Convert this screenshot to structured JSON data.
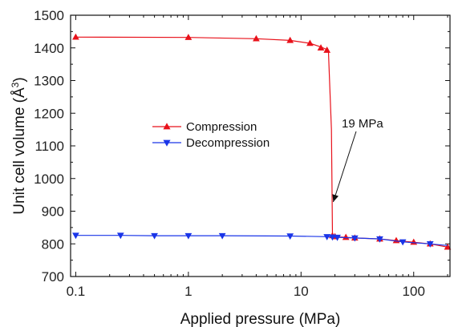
{
  "chart_data": {
    "type": "line",
    "xlabel": "Applied pressure (MPa)",
    "ylabel": "Unit cell volume (Å³)",
    "ylabel_parts": {
      "main": "Unit cell volume (Å",
      "sup": "3",
      "close": ")"
    },
    "xscale": "log",
    "xlim": [
      0.09,
      210
    ],
    "ylim": [
      700,
      1500
    ],
    "xticks": [
      0.1,
      1,
      10,
      100
    ],
    "xtick_labels": [
      "0.1",
      "1",
      "10",
      "100"
    ],
    "yticks": [
      700,
      800,
      900,
      1000,
      1100,
      1200,
      1300,
      1400,
      1500
    ],
    "ytick_labels": [
      "700",
      "800",
      "900",
      "1000",
      "1100",
      "1200",
      "1300",
      "1400",
      "1500"
    ],
    "grid": false,
    "legend_position": "center-left",
    "series": [
      {
        "name": "Compression",
        "color": "#e8111a",
        "marker": "triangle-up",
        "points": [
          [
            0.1,
            1433
          ],
          [
            1,
            1432
          ],
          [
            4,
            1428
          ],
          [
            8,
            1423
          ],
          [
            12,
            1414
          ],
          [
            15,
            1400
          ],
          [
            17,
            1393
          ],
          [
            19,
            825
          ],
          [
            20,
            822
          ],
          [
            25,
            820
          ],
          [
            30,
            818
          ],
          [
            50,
            815
          ],
          [
            70,
            810
          ],
          [
            100,
            805
          ],
          [
            140,
            800
          ],
          [
            200,
            790
          ]
        ],
        "curve": [
          [
            0.1,
            1433
          ],
          [
            1,
            1432
          ],
          [
            4,
            1428
          ],
          [
            8,
            1423
          ],
          [
            12,
            1414
          ],
          [
            15,
            1403
          ],
          [
            17.5,
            1393
          ],
          [
            18.6,
            1150
          ],
          [
            19,
            825
          ],
          [
            20,
            822
          ],
          [
            25,
            820
          ],
          [
            30,
            818
          ],
          [
            50,
            815
          ],
          [
            70,
            810
          ],
          [
            100,
            805
          ],
          [
            140,
            800
          ],
          [
            200,
            790
          ]
        ]
      },
      {
        "name": "Decompression",
        "color": "#1a35e8",
        "marker": "triangle-down",
        "points": [
          [
            0.1,
            826
          ],
          [
            0.25,
            826
          ],
          [
            0.5,
            825
          ],
          [
            1,
            825
          ],
          [
            2,
            825
          ],
          [
            8,
            824
          ],
          [
            17,
            822
          ],
          [
            19,
            821
          ],
          [
            21,
            820
          ],
          [
            30,
            818
          ],
          [
            50,
            815
          ],
          [
            80,
            806
          ],
          [
            140,
            800
          ]
        ],
        "curve": [
          [
            0.1,
            826
          ],
          [
            0.25,
            826
          ],
          [
            0.5,
            825
          ],
          [
            1,
            825
          ],
          [
            2,
            825
          ],
          [
            8,
            824
          ],
          [
            17,
            822
          ],
          [
            19,
            821
          ],
          [
            21,
            820
          ],
          [
            30,
            818
          ],
          [
            50,
            815
          ],
          [
            80,
            806
          ],
          [
            140,
            800
          ],
          [
            200,
            795
          ]
        ]
      }
    ],
    "annotations": [
      {
        "text": "19 MPa",
        "points_to": [
          19,
          1100
        ]
      }
    ]
  }
}
